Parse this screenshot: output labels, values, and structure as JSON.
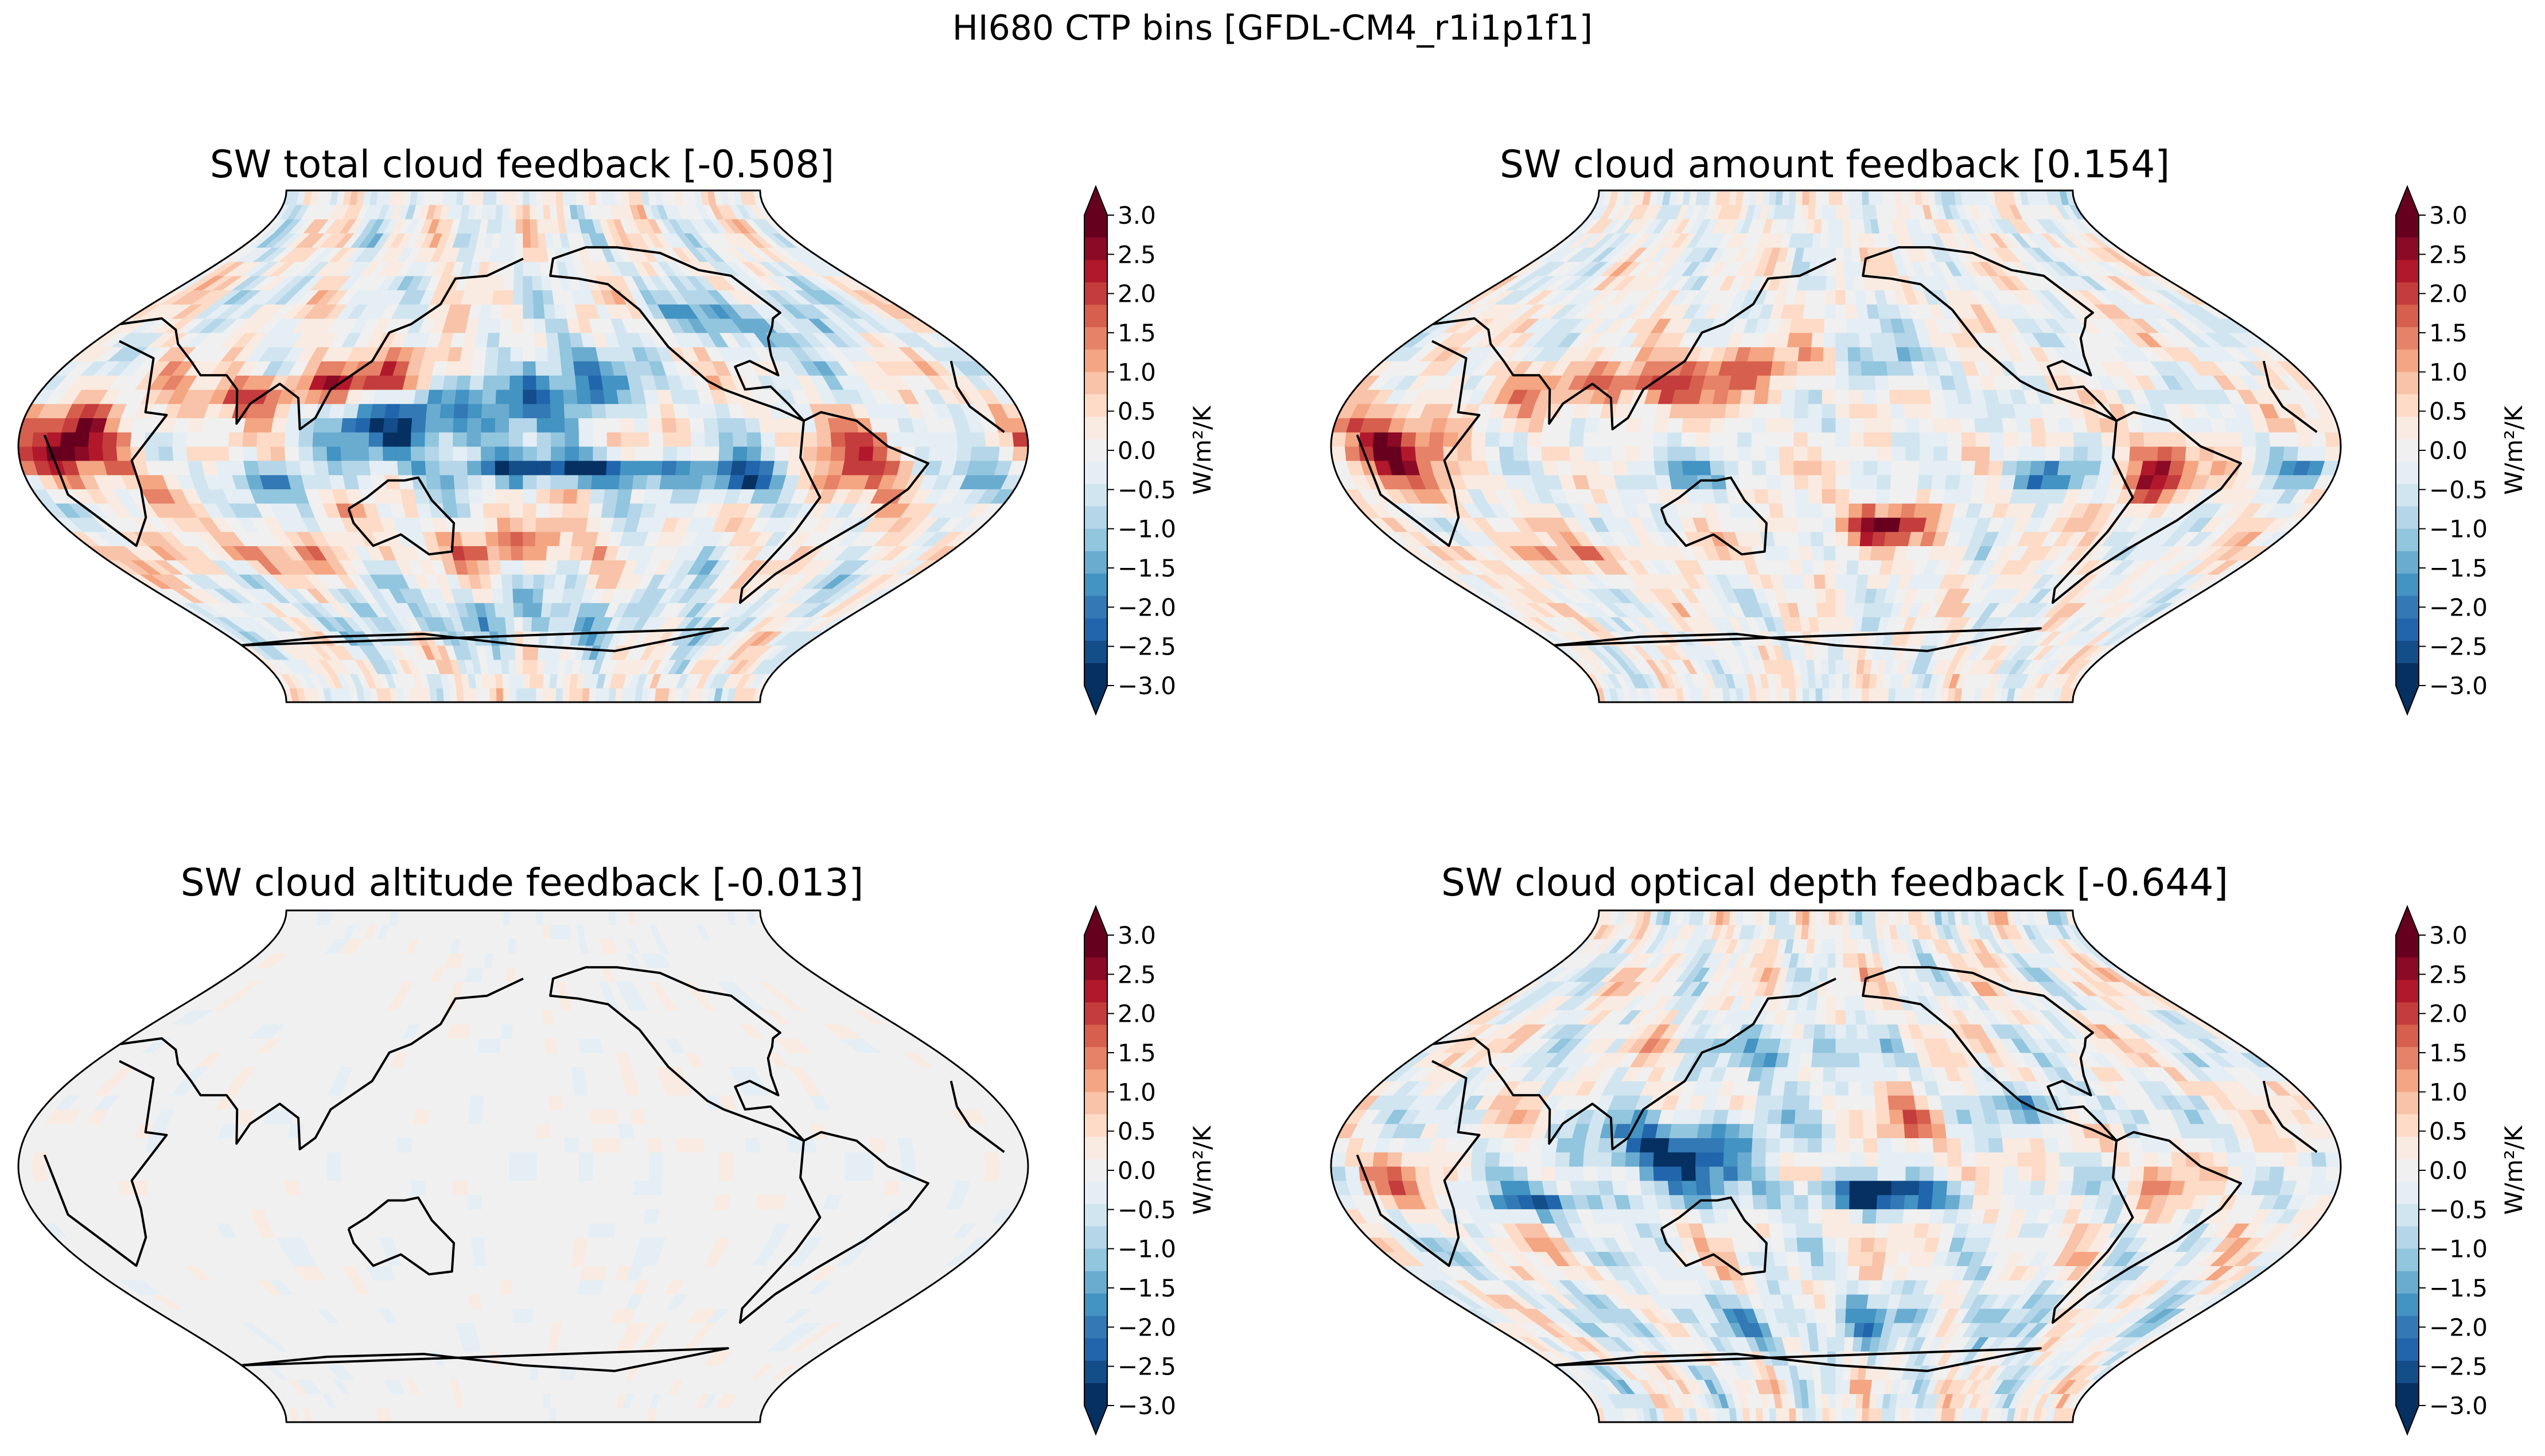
{
  "figure": {
    "suptitle": "HI680 CTP bins [GFDL-CM4_r1i1p1f1]"
  },
  "colorbar": {
    "ticks": [
      "3.0",
      "2.5",
      "2.0",
      "1.5",
      "1.0",
      "0.5",
      "0.0",
      "−0.5",
      "−1.0",
      "−1.5",
      "−2.0",
      "−2.5",
      "−3.0"
    ],
    "unit_label": "W/m²/K",
    "vmin": -3.0,
    "vmax": 3.0,
    "extend": "both",
    "cmap": "RdBu_r",
    "colors_top_to_bottom": [
      "#67001f",
      "#8b0a25",
      "#b2182b",
      "#c43c3c",
      "#d6604d",
      "#e58268",
      "#f4a582",
      "#f8c3a8",
      "#fddbc7",
      "#f9ebe1",
      "#f0f0f0",
      "#e4eef4",
      "#d1e5f0",
      "#b4d6e8",
      "#92c5de",
      "#6aacd0",
      "#4393c3",
      "#3279b5",
      "#2166ac",
      "#134d8a",
      "#053061"
    ]
  },
  "panels": [
    {
      "title": "SW total cloud feedback [-0.508]",
      "style": "strong",
      "blobs": [
        {
          "lon": 20,
          "lat": 0,
          "rx": 22,
          "ry": 15,
          "v": 2.6
        },
        {
          "lon": 75,
          "lat": 18,
          "rx": 22,
          "ry": 7,
          "v": 1.8
        },
        {
          "lon": 120,
          "lat": 22,
          "rx": 30,
          "ry": 7,
          "v": 2.0
        },
        {
          "lon": 150,
          "lat": 30,
          "rx": 25,
          "ry": 6,
          "v": 1.2
        },
        {
          "lon": 140,
          "lat": 8,
          "rx": 30,
          "ry": 12,
          "v": -2.8
        },
        {
          "lon": 190,
          "lat": 22,
          "rx": 30,
          "ry": 12,
          "v": -2.4
        },
        {
          "lon": 200,
          "lat": -8,
          "rx": 45,
          "ry": 5,
          "v": -3.0
        },
        {
          "lon": 260,
          "lat": -12,
          "rx": 15,
          "ry": 7,
          "v": -2.6
        },
        {
          "lon": 300,
          "lat": -8,
          "rx": 15,
          "ry": 12,
          "v": 2.5
        },
        {
          "lon": 345,
          "lat": -10,
          "rx": 12,
          "ry": 8,
          "v": -2.0
        },
        {
          "lon": 175,
          "lat": -35,
          "rx": 30,
          "ry": 7,
          "v": 1.8
        },
        {
          "lon": 60,
          "lat": -38,
          "rx": 60,
          "ry": 6,
          "v": 1.0
        },
        {
          "lon": 180,
          "lat": -60,
          "rx": 120,
          "ry": 10,
          "v": -1.0
        },
        {
          "lon": 280,
          "lat": 45,
          "rx": 40,
          "ry": 10,
          "v": -1.4
        },
        {
          "lon": 90,
          "lat": -12,
          "rx": 25,
          "ry": 6,
          "v": -1.4
        }
      ]
    },
    {
      "title": "SW cloud amount feedback [0.154]",
      "style": "medium",
      "blobs": [
        {
          "lon": 20,
          "lat": 0,
          "rx": 22,
          "ry": 15,
          "v": 2.4
        },
        {
          "lon": 110,
          "lat": 22,
          "rx": 45,
          "ry": 9,
          "v": 2.0
        },
        {
          "lon": 150,
          "lat": 30,
          "rx": 25,
          "ry": 6,
          "v": 1.2
        },
        {
          "lon": 200,
          "lat": -28,
          "rx": 20,
          "ry": 7,
          "v": 2.6
        },
        {
          "lon": 295,
          "lat": -10,
          "rx": 14,
          "ry": 12,
          "v": 2.2
        },
        {
          "lon": 255,
          "lat": -10,
          "rx": 14,
          "ry": 6,
          "v": -2.4
        },
        {
          "lon": 350,
          "lat": -8,
          "rx": 10,
          "ry": 6,
          "v": -2.2
        },
        {
          "lon": 60,
          "lat": -38,
          "rx": 60,
          "ry": 6,
          "v": 1.0
        },
        {
          "lon": 200,
          "lat": 30,
          "rx": 20,
          "ry": 10,
          "v": -1.0
        },
        {
          "lon": 120,
          "lat": -10,
          "rx": 20,
          "ry": 6,
          "v": -1.2
        }
      ]
    },
    {
      "title": "SW cloud altitude feedback [-0.013]",
      "style": "flat",
      "blobs": []
    },
    {
      "title": "SW cloud optical depth feedback [-0.644]",
      "style": "strong",
      "blobs": [
        {
          "lon": 125,
          "lat": 5,
          "rx": 30,
          "ry": 13,
          "v": -2.8
        },
        {
          "lon": 195,
          "lat": -10,
          "rx": 35,
          "ry": 5,
          "v": -3.0
        },
        {
          "lon": 75,
          "lat": -12,
          "rx": 25,
          "ry": 5,
          "v": -2.0
        },
        {
          "lon": 210,
          "lat": 15,
          "rx": 15,
          "ry": 5,
          "v": 1.2
        },
        {
          "lon": 300,
          "lat": -8,
          "rx": 12,
          "ry": 8,
          "v": 0.8
        },
        {
          "lon": 20,
          "lat": -5,
          "rx": 12,
          "ry": 8,
          "v": 1.0
        },
        {
          "lon": 160,
          "lat": 40,
          "rx": 30,
          "ry": 8,
          "v": -1.5
        },
        {
          "lon": 260,
          "lat": 20,
          "rx": 25,
          "ry": 6,
          "v": -1.5
        },
        {
          "lon": 180,
          "lat": -55,
          "rx": 120,
          "ry": 10,
          "v": -1.0
        }
      ]
    }
  ]
}
